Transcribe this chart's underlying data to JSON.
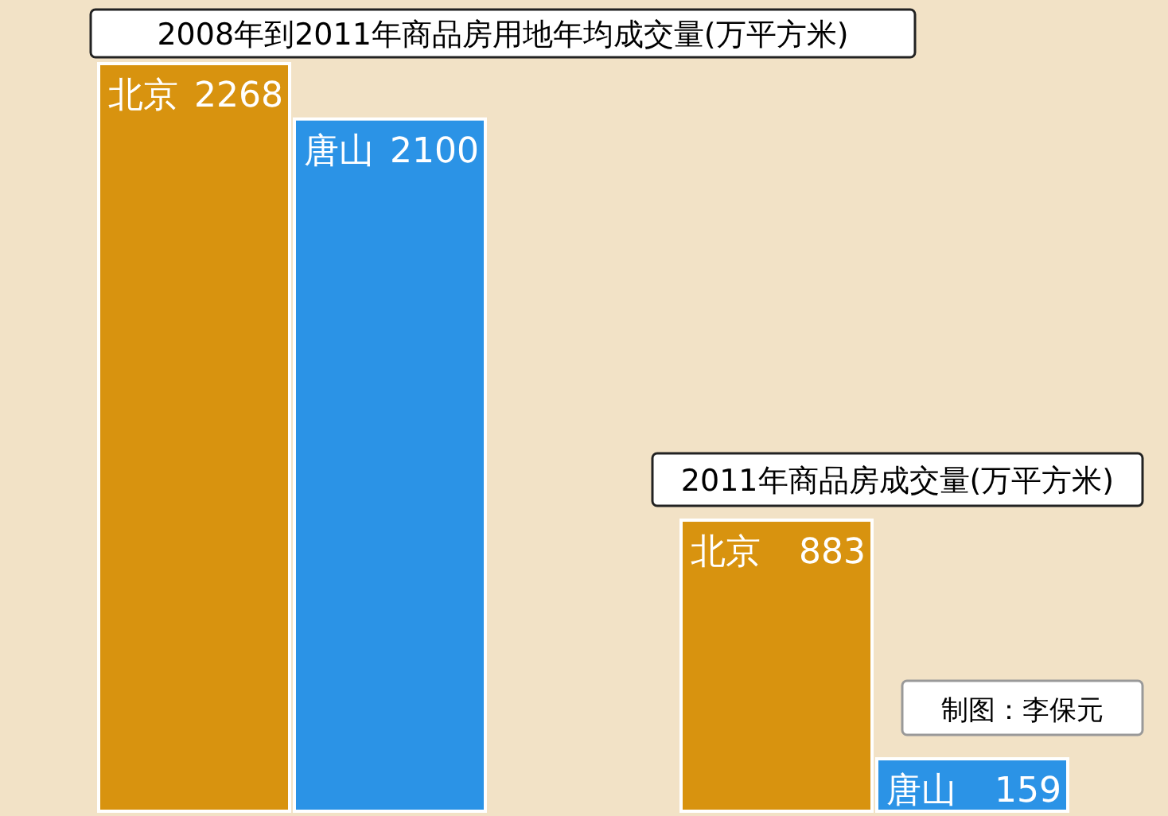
{
  "chart_data": {
    "type": "bar",
    "categories": [
      null,
      null
    ],
    "series": [
      {
        "name": "北京",
        "color": "#d8930f",
        "values": [
          2268,
          883
        ]
      },
      {
        "name": "唐山",
        "color": "#2b93e6",
        "values": [
          2100,
          159
        ]
      }
    ],
    "data_labels": true,
    "annotations": [
      "2008年到2011年商品房用地年均成交量(万平方米)",
      "2011年商品房成交量(万平方米)",
      "制图：李保元"
    ]
  }
}
